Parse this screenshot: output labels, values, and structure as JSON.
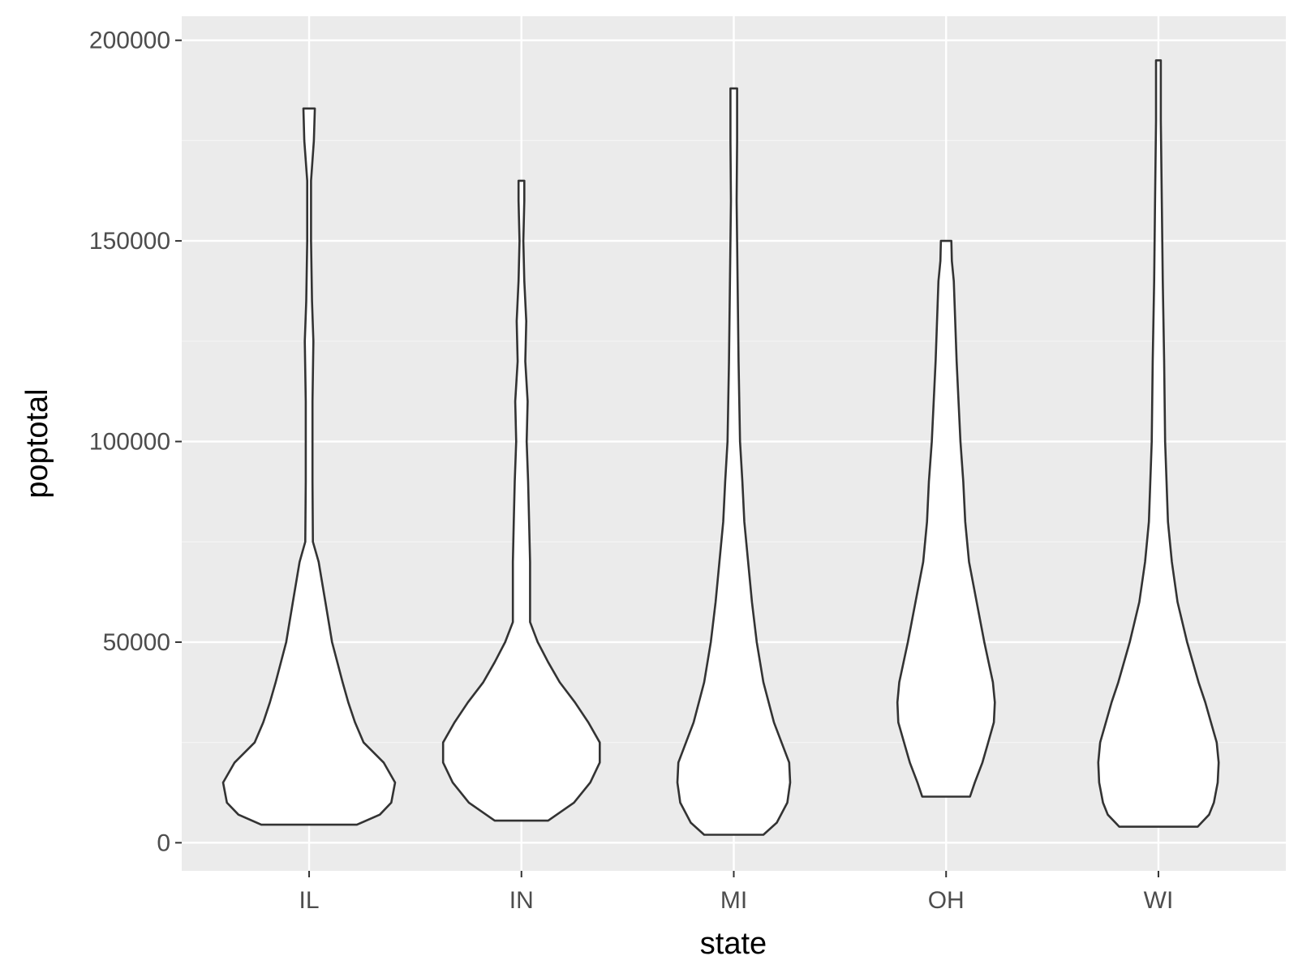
{
  "chart_data": {
    "type": "violin",
    "xlabel": "state",
    "ylabel": "poptotal",
    "ylim": [
      -7000,
      206000
    ],
    "y_ticks": [
      0,
      50000,
      100000,
      150000,
      200000
    ],
    "y_tick_labels": [
      "0",
      "50000",
      "100000",
      "150000",
      "200000"
    ],
    "categories": [
      "IL",
      "IN",
      "MI",
      "OH",
      "WI"
    ],
    "grid": true,
    "legend": "none",
    "colors": {
      "panel_background": "#ebebeb",
      "grid_major": "#ffffff",
      "grid_minor": "#f5f5f5",
      "violin_fill": "#ffffff",
      "violin_outline": "#333333",
      "tick_text": "#4d4d4d",
      "title_text": "#000000"
    },
    "violins": [
      {
        "category": "IL",
        "min": 4500,
        "max": 183000,
        "profile": [
          [
            4500,
            0.5
          ],
          [
            7000,
            0.74
          ],
          [
            10000,
            0.86
          ],
          [
            15000,
            0.9
          ],
          [
            20000,
            0.78
          ],
          [
            25000,
            0.57
          ],
          [
            30000,
            0.48
          ],
          [
            35000,
            0.41
          ],
          [
            40000,
            0.35
          ],
          [
            50000,
            0.24
          ],
          [
            60000,
            0.17
          ],
          [
            70000,
            0.1
          ],
          [
            75000,
            0.04
          ],
          [
            90000,
            0.035
          ],
          [
            110000,
            0.035
          ],
          [
            125000,
            0.045
          ],
          [
            135000,
            0.03
          ],
          [
            150000,
            0.02
          ],
          [
            165000,
            0.02
          ],
          [
            175000,
            0.05
          ],
          [
            183000,
            0.06
          ]
        ]
      },
      {
        "category": "IN",
        "min": 5500,
        "max": 165000,
        "profile": [
          [
            5500,
            0.28
          ],
          [
            10000,
            0.55
          ],
          [
            15000,
            0.72
          ],
          [
            20000,
            0.82
          ],
          [
            25000,
            0.82
          ],
          [
            30000,
            0.7
          ],
          [
            35000,
            0.56
          ],
          [
            40000,
            0.4
          ],
          [
            45000,
            0.28
          ],
          [
            50000,
            0.17
          ],
          [
            55000,
            0.09
          ],
          [
            70000,
            0.09
          ],
          [
            80000,
            0.08
          ],
          [
            90000,
            0.07
          ],
          [
            100000,
            0.055
          ],
          [
            110000,
            0.065
          ],
          [
            120000,
            0.04
          ],
          [
            130000,
            0.05
          ],
          [
            140000,
            0.03
          ],
          [
            150000,
            0.02
          ],
          [
            160000,
            0.03
          ],
          [
            165000,
            0.03
          ]
        ]
      },
      {
        "category": "MI",
        "min": 2000,
        "max": 188000,
        "profile": [
          [
            2000,
            0.31
          ],
          [
            5000,
            0.45
          ],
          [
            10000,
            0.56
          ],
          [
            15000,
            0.59
          ],
          [
            20000,
            0.58
          ],
          [
            25000,
            0.5
          ],
          [
            30000,
            0.42
          ],
          [
            40000,
            0.31
          ],
          [
            50000,
            0.24
          ],
          [
            60000,
            0.19
          ],
          [
            70000,
            0.15
          ],
          [
            80000,
            0.11
          ],
          [
            90000,
            0.09
          ],
          [
            100000,
            0.065
          ],
          [
            120000,
            0.05
          ],
          [
            140000,
            0.04
          ],
          [
            160000,
            0.03
          ],
          [
            175000,
            0.035
          ],
          [
            188000,
            0.035
          ]
        ]
      },
      {
        "category": "OH",
        "min": 11500,
        "max": 150000,
        "profile": [
          [
            11500,
            0.25
          ],
          [
            15000,
            0.3
          ],
          [
            20000,
            0.38
          ],
          [
            25000,
            0.44
          ],
          [
            30000,
            0.5
          ],
          [
            35000,
            0.51
          ],
          [
            40000,
            0.49
          ],
          [
            50000,
            0.4
          ],
          [
            60000,
            0.32
          ],
          [
            70000,
            0.24
          ],
          [
            80000,
            0.2
          ],
          [
            90000,
            0.18
          ],
          [
            100000,
            0.15
          ],
          [
            120000,
            0.11
          ],
          [
            140000,
            0.08
          ],
          [
            145000,
            0.06
          ],
          [
            150000,
            0.055
          ]
        ]
      },
      {
        "category": "WI",
        "min": 4000,
        "max": 195000,
        "profile": [
          [
            4000,
            0.41
          ],
          [
            7000,
            0.53
          ],
          [
            10000,
            0.58
          ],
          [
            15000,
            0.62
          ],
          [
            20000,
            0.63
          ],
          [
            25000,
            0.61
          ],
          [
            30000,
            0.55
          ],
          [
            35000,
            0.49
          ],
          [
            40000,
            0.42
          ],
          [
            50000,
            0.3
          ],
          [
            60000,
            0.2
          ],
          [
            70000,
            0.14
          ],
          [
            80000,
            0.1
          ],
          [
            100000,
            0.07
          ],
          [
            120000,
            0.06
          ],
          [
            140000,
            0.045
          ],
          [
            160000,
            0.035
          ],
          [
            180000,
            0.025
          ],
          [
            195000,
            0.025
          ]
        ]
      }
    ]
  }
}
